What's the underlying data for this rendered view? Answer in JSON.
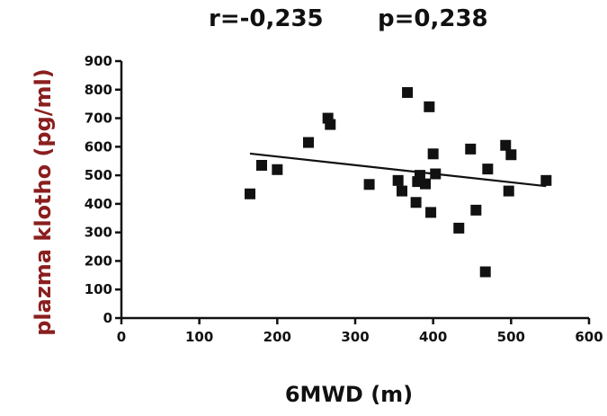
{
  "stats": {
    "r_text": "r=-0,235",
    "p_text": "p=0,238"
  },
  "chart_data": {
    "type": "scatter",
    "xlabel": "6MWD (m)",
    "ylabel": "plazma klotho (pg/ml)",
    "xlim": [
      0,
      600
    ],
    "ylim": [
      0,
      900
    ],
    "xticks": [
      0,
      100,
      200,
      300,
      400,
      500,
      600
    ],
    "yticks": [
      0,
      100,
      200,
      300,
      400,
      500,
      600,
      700,
      800,
      900
    ],
    "grid": false,
    "points": [
      {
        "x": 165,
        "y": 435
      },
      {
        "x": 180,
        "y": 535
      },
      {
        "x": 200,
        "y": 520
      },
      {
        "x": 240,
        "y": 615
      },
      {
        "x": 265,
        "y": 700
      },
      {
        "x": 268,
        "y": 678
      },
      {
        "x": 318,
        "y": 468
      },
      {
        "x": 355,
        "y": 482
      },
      {
        "x": 360,
        "y": 445
      },
      {
        "x": 367,
        "y": 790
      },
      {
        "x": 378,
        "y": 405
      },
      {
        "x": 380,
        "y": 478
      },
      {
        "x": 383,
        "y": 500
      },
      {
        "x": 390,
        "y": 470
      },
      {
        "x": 395,
        "y": 740
      },
      {
        "x": 397,
        "y": 370
      },
      {
        "x": 400,
        "y": 575
      },
      {
        "x": 403,
        "y": 505
      },
      {
        "x": 433,
        "y": 315
      },
      {
        "x": 448,
        "y": 592
      },
      {
        "x": 455,
        "y": 378
      },
      {
        "x": 467,
        "y": 162
      },
      {
        "x": 470,
        "y": 522
      },
      {
        "x": 493,
        "y": 605
      },
      {
        "x": 497,
        "y": 445
      },
      {
        "x": 500,
        "y": 572
      },
      {
        "x": 545,
        "y": 482
      }
    ],
    "trendline": {
      "x": [
        165,
        545
      ],
      "y": [
        576,
        462
      ]
    }
  }
}
